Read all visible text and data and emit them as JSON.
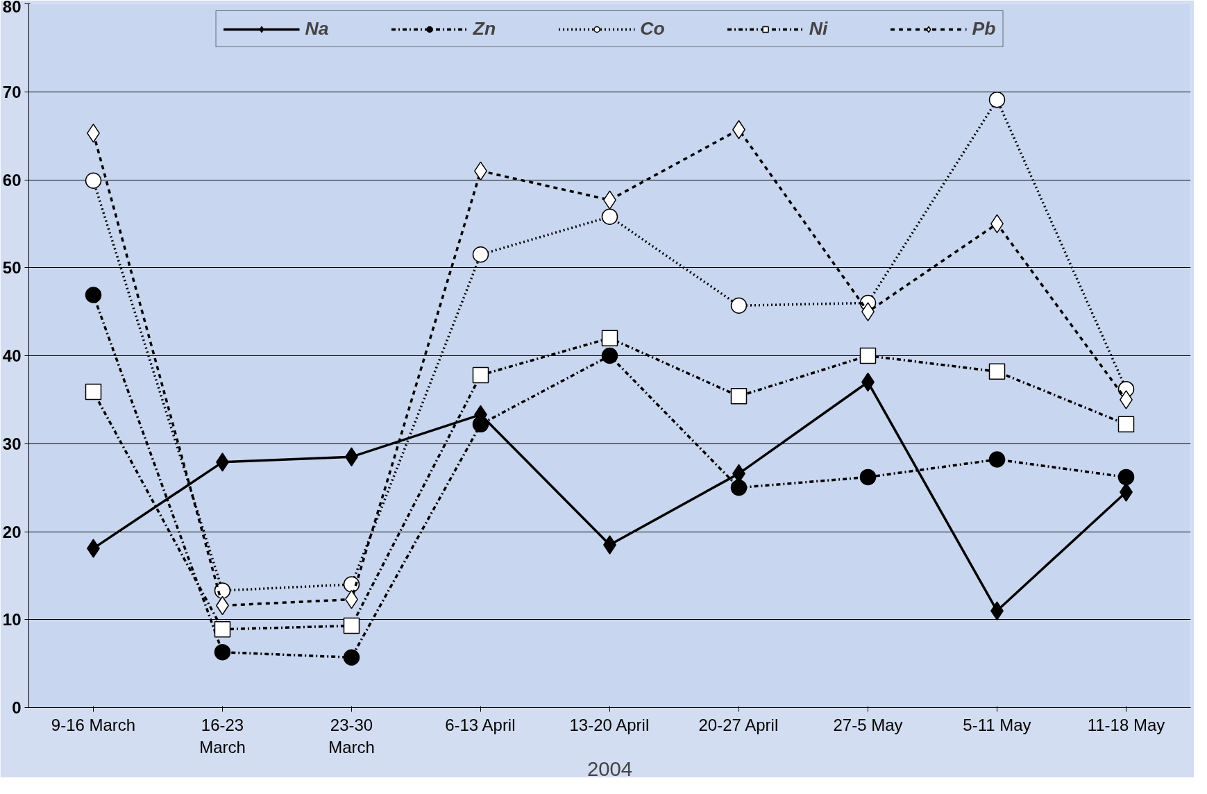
{
  "chart_data": {
    "type": "line",
    "xlabel": "2004",
    "categories": [
      "9-16 March",
      "16-23\nMarch",
      "23-30\nMarch",
      "6-13 April",
      "13-20 April",
      "20-27 April",
      "27-5 May",
      "5-11 May",
      "11-18 May"
    ],
    "ylim": [
      0,
      80
    ],
    "yticks": [
      0,
      10,
      20,
      30,
      40,
      50,
      60,
      70,
      80
    ],
    "grid": "y",
    "legend": "top",
    "series": [
      {
        "name": "Na",
        "color": "#000000",
        "marker": "diamond",
        "line_style": "solid",
        "values": [
          18.1,
          27.9,
          28.5,
          33.3,
          18.5,
          26.6,
          37.0,
          11.0,
          24.5
        ]
      },
      {
        "name": "Zn",
        "color": "#000000",
        "marker": "circle",
        "line_style": "dashdot",
        "values": [
          46.9,
          6.3,
          5.7,
          32.2,
          40.0,
          25.0,
          26.2,
          28.2,
          26.2
        ]
      },
      {
        "name": "Co",
        "color": "#000000",
        "marker": "circle",
        "line_style": "dotted",
        "values": [
          59.9,
          13.3,
          14.0,
          51.5,
          55.8,
          45.7,
          46.0,
          69.1,
          36.2
        ]
      },
      {
        "name": "Ni",
        "color": "#000000",
        "marker": "square",
        "line_style": "dashdot",
        "values": [
          35.9,
          8.9,
          9.3,
          37.8,
          42.0,
          35.4,
          40.0,
          38.2,
          32.2
        ]
      },
      {
        "name": "Pb",
        "color": "#000000",
        "marker": "diamond",
        "line_style": "dashed",
        "values": [
          65.3,
          11.6,
          12.3,
          61.0,
          57.7,
          65.7,
          45.0,
          55.0,
          35.0
        ]
      }
    ]
  }
}
